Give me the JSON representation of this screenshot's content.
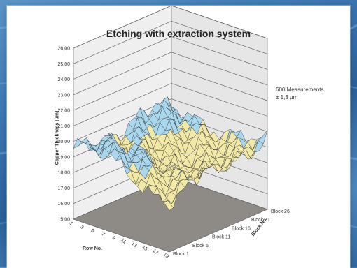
{
  "chart_data": {
    "type": "surface3d",
    "title": "Etching with extraction system",
    "zlabel": "Copper Thickness [µm]",
    "xlabel": "Row No.",
    "ylabel": "Block No.",
    "zlim": [
      15,
      26
    ],
    "z_ticks": [
      "15,00",
      "16,00",
      "17,00",
      "18,00",
      "19,00",
      "20,00",
      "21,00",
      "22,00",
      "23,00",
      "24,00",
      "25,00",
      "26,00"
    ],
    "row_ticks": [
      "1",
      "3",
      "5",
      "7",
      "9",
      "11",
      "13",
      "15",
      "17",
      "19"
    ],
    "block_ticks": [
      "Block 1",
      "Block 6",
      "Block 11",
      "Block 16",
      "Block 21",
      "Block 26"
    ],
    "annotation": [
      "600 Measurements",
      "± 1,3 µm"
    ],
    "grid": true,
    "colors": {
      "surface_high": "#a9d8ee",
      "surface_low": "#f2e9a6",
      "floor": "#8e8b86",
      "walls": "#efefef",
      "mesh": "#333333"
    },
    "value_range": [
      17.4,
      20.8
    ],
    "mean_value": 19.1
  }
}
